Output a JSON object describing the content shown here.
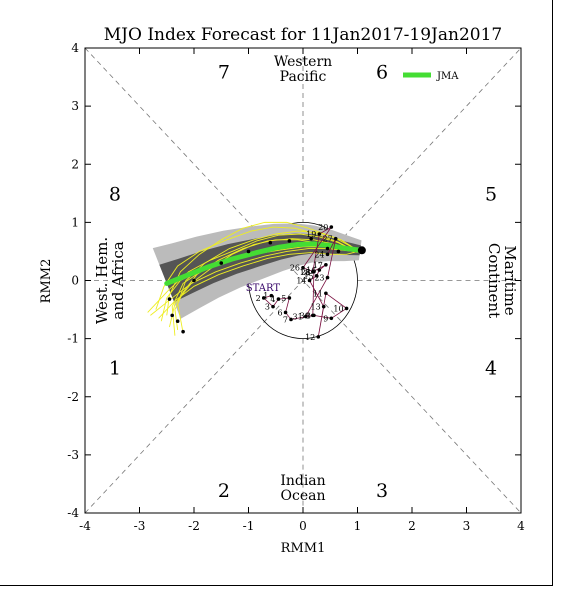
{
  "chart_data": {
    "type": "scatter",
    "title": "MJO Index Forecast for 11Jan2017-19Jan2017",
    "xlabel": "RMM1",
    "ylabel": "RMM2",
    "xlim": [
      -4,
      4
    ],
    "ylim": [
      -4,
      4
    ],
    "x_ticks": [
      "-4",
      "-3",
      "-2",
      "-1",
      "0",
      "1",
      "2",
      "3",
      "4"
    ],
    "y_ticks": [
      "-4",
      "-3",
      "-2",
      "-1",
      "0",
      "1",
      "2",
      "3",
      "4"
    ],
    "grid": false,
    "phase_labels": [
      {
        "text": "1",
        "x": -3.45,
        "y": -1.5
      },
      {
        "text": "2",
        "x": -1.45,
        "y": -3.6
      },
      {
        "text": "3",
        "x": 1.45,
        "y": -3.6
      },
      {
        "text": "4",
        "x": 3.45,
        "y": -1.5
      },
      {
        "text": "5",
        "x": 3.45,
        "y": 1.5
      },
      {
        "text": "6",
        "x": 1.45,
        "y": 3.6
      },
      {
        "text": "7",
        "x": -1.45,
        "y": 3.6
      },
      {
        "text": "8",
        "x": -3.45,
        "y": 1.5
      }
    ],
    "region_labels": [
      {
        "lines": [
          "Western",
          "Pacific"
        ],
        "pos": "top"
      },
      {
        "lines": [
          "Indian",
          "Ocean"
        ],
        "pos": "bottom"
      },
      {
        "lines": [
          "West. Hem.",
          "and Africa"
        ],
        "pos": "left"
      },
      {
        "lines": [
          "Maritime",
          "Continent"
        ],
        "pos": "right"
      }
    ],
    "start_label": "START",
    "legend": {
      "label": "JMA",
      "color": "#44dd33",
      "position": "top-right"
    },
    "unit_circle_radius": 1,
    "observed": {
      "color": "#330066",
      "points": [
        {
          "x": -0.58,
          "y": -0.26,
          "label": "1"
        },
        {
          "x": -0.72,
          "y": -0.3,
          "label": "2"
        },
        {
          "x": -0.55,
          "y": -0.45,
          "label": "3"
        },
        {
          "x": -0.45,
          "y": -0.32,
          "label": "4"
        },
        {
          "x": -0.25,
          "y": -0.3,
          "label": "5"
        },
        {
          "x": -0.32,
          "y": -0.55,
          "label": "6"
        },
        {
          "x": -0.22,
          "y": -0.67,
          "label": "7"
        },
        {
          "x": 0.2,
          "y": -0.6,
          "label": "8"
        },
        {
          "x": 0.52,
          "y": -0.65,
          "label": "9"
        },
        {
          "x": 0.8,
          "y": -0.48,
          "label": "10"
        },
        {
          "x": 0.42,
          "y": -0.22,
          "label": "11"
        },
        {
          "x": 0.28,
          "y": -0.97,
          "label": "12"
        },
        {
          "x": 0.38,
          "y": -0.45,
          "label": "13"
        },
        {
          "x": 0.12,
          "y": 0.0,
          "label": "14"
        },
        {
          "x": 0.25,
          "y": 0.08,
          "label": "15"
        },
        {
          "x": 0.3,
          "y": 0.18,
          "label": "16"
        },
        {
          "x": 0.42,
          "y": 0.27,
          "label": "17"
        },
        {
          "x": 0.18,
          "y": 0.15,
          "label": "18"
        },
        {
          "x": 0.3,
          "y": 0.8,
          "label": "19"
        },
        {
          "x": 0.52,
          "y": 0.92,
          "label": "20"
        },
        {
          "x": 0.0,
          "y": 0.22,
          "label": "26"
        },
        {
          "x": 0.2,
          "y": 0.15,
          "label": "28"
        },
        {
          "x": 0.18,
          "y": -0.6,
          "label": "30"
        },
        {
          "x": 0.05,
          "y": -0.62,
          "label": "31"
        },
        {
          "x": 0.45,
          "y": 0.05,
          "label": "23"
        },
        {
          "x": 0.6,
          "y": 0.72,
          "label": "27"
        },
        {
          "x": 0.45,
          "y": 0.45,
          "label": "24"
        }
      ]
    },
    "ensemble_mean": {
      "name": "JMA",
      "color": "#44dd33",
      "x": [
        1.05,
        0.8,
        0.5,
        0.2,
        -0.1,
        -0.45,
        -0.85,
        -1.3,
        -1.75,
        -2.15,
        -2.5
      ],
      "y": [
        0.52,
        0.55,
        0.6,
        0.63,
        0.62,
        0.57,
        0.48,
        0.37,
        0.23,
        0.08,
        -0.05
      ]
    },
    "members": [
      {
        "x": [
          0.95,
          0.6,
          0.2,
          -0.2,
          -0.65,
          -1.1,
          -1.55,
          -1.95,
          -2.2,
          -2.35,
          -2.3
        ],
        "y": [
          0.5,
          0.62,
          0.7,
          0.72,
          0.68,
          0.55,
          0.35,
          0.1,
          -0.2,
          -0.5,
          -0.85
        ]
      },
      {
        "x": [
          0.95,
          0.7,
          0.35,
          0.0,
          -0.4,
          -0.85,
          -1.3,
          -1.8,
          -2.25,
          -2.5,
          -2.6
        ],
        "y": [
          0.55,
          0.58,
          0.62,
          0.64,
          0.6,
          0.5,
          0.35,
          0.2,
          0.0,
          -0.3,
          -0.7
        ]
      },
      {
        "x": [
          1.0,
          0.65,
          0.25,
          -0.15,
          -0.55,
          -0.95,
          -1.4,
          -1.9,
          -2.3,
          -2.55,
          -2.7
        ],
        "y": [
          0.48,
          0.66,
          0.8,
          0.9,
          0.92,
          0.85,
          0.7,
          0.5,
          0.25,
          -0.1,
          -0.5
        ]
      },
      {
        "x": [
          0.95,
          0.75,
          0.45,
          0.1,
          -0.3,
          -0.7,
          -1.15,
          -1.6,
          -2.05,
          -2.4,
          -2.8
        ],
        "y": [
          0.5,
          0.52,
          0.55,
          0.55,
          0.5,
          0.42,
          0.3,
          0.15,
          -0.05,
          -0.3,
          -0.6
        ]
      },
      {
        "x": [
          1.0,
          0.7,
          0.3,
          -0.1,
          -0.5,
          -0.9,
          -1.35,
          -1.8,
          -2.15,
          -2.3,
          -2.2
        ],
        "y": [
          0.52,
          0.7,
          0.82,
          0.85,
          0.8,
          0.7,
          0.55,
          0.3,
          0.0,
          -0.4,
          -0.9
        ]
      },
      {
        "x": [
          0.95,
          0.55,
          0.1,
          -0.3,
          -0.7,
          -1.1,
          -1.5,
          -1.9,
          -2.25,
          -2.45,
          -2.5
        ],
        "y": [
          0.55,
          0.75,
          0.9,
          1.0,
          1.0,
          0.9,
          0.7,
          0.45,
          0.15,
          -0.25,
          -0.6
        ]
      },
      {
        "x": [
          1.0,
          0.8,
          0.5,
          0.15,
          -0.25,
          -0.65,
          -1.1,
          -1.55,
          -2.0,
          -2.35,
          -2.65
        ],
        "y": [
          0.5,
          0.45,
          0.45,
          0.48,
          0.45,
          0.38,
          0.25,
          0.1,
          -0.1,
          -0.35,
          -0.65
        ]
      },
      {
        "x": [
          0.9,
          0.6,
          0.25,
          -0.1,
          -0.5,
          -0.9,
          -1.3,
          -1.7,
          -2.05,
          -2.35,
          -2.45
        ],
        "y": [
          0.55,
          0.6,
          0.65,
          0.7,
          0.7,
          0.62,
          0.45,
          0.2,
          -0.05,
          -0.4,
          -0.8
        ]
      },
      {
        "x": [
          0.95,
          0.65,
          0.3,
          -0.05,
          -0.45,
          -0.85,
          -1.25,
          -1.7,
          -2.1,
          -2.45,
          -2.85
        ],
        "y": [
          0.5,
          0.65,
          0.75,
          0.8,
          0.78,
          0.68,
          0.52,
          0.35,
          0.15,
          -0.15,
          -0.55
        ]
      },
      {
        "x": [
          1.0,
          0.75,
          0.4,
          0.0,
          -0.45,
          -0.9,
          -1.35,
          -1.8,
          -2.2,
          -2.4,
          -2.35
        ],
        "y": [
          0.52,
          0.55,
          0.58,
          0.58,
          0.52,
          0.45,
          0.35,
          0.2,
          -0.05,
          -0.45,
          -0.95
        ]
      }
    ],
    "members_color": "#eeee22",
    "band_inner_color": "#555555",
    "band_outer_color": "#bbbbbb",
    "ensemble_points": [
      {
        "x": -2.45,
        "y": -0.32
      },
      {
        "x": -2.4,
        "y": -0.6
      },
      {
        "x": -2.2,
        "y": -0.88
      },
      {
        "x": -2.3,
        "y": -0.7
      },
      {
        "x": -2.0,
        "y": 0.0
      },
      {
        "x": -1.5,
        "y": 0.3
      },
      {
        "x": -1.0,
        "y": 0.5
      },
      {
        "x": -0.6,
        "y": 0.65
      },
      {
        "x": -0.25,
        "y": 0.68
      },
      {
        "x": 0.15,
        "y": 0.72
      },
      {
        "x": 0.45,
        "y": 0.55
      },
      {
        "x": 0.65,
        "y": 0.5
      }
    ],
    "final_point": {
      "x": 1.08,
      "y": 0.52
    }
  }
}
